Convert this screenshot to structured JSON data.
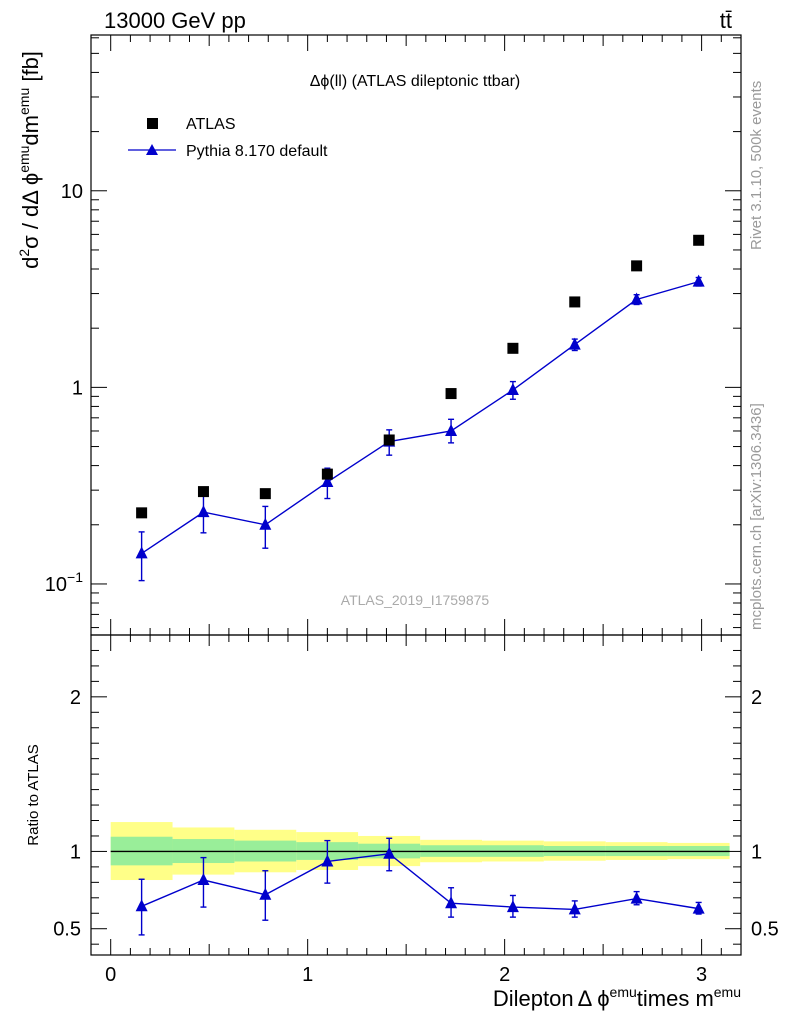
{
  "header": {
    "energy_label": "13000 GeV pp",
    "process_label": "tt̄"
  },
  "side": {
    "rivet_label": "Rivet 3.1.10,  500k events",
    "mcplots_label": "mcplots.cern.ch [arXiv:1306.3436]"
  },
  "chart_data": [
    {
      "type": "scatter",
      "title": "Δϕ(ll) (ATLAS dileptonic ttbar)",
      "ylabel_parts": [
        "d",
        "2",
        "σ / dΔ ϕ",
        "emu",
        "dm",
        "emu",
        " [fb]"
      ],
      "yscale": "log",
      "ylim": [
        0.055,
        62
      ],
      "xlim": [
        -0.1,
        3.2
      ],
      "yticks": [
        {
          "value": 0.1,
          "base": "10",
          "exp": "−1"
        },
        {
          "value": 1,
          "label": "1"
        },
        {
          "value": 10,
          "label": "10"
        }
      ],
      "legend": {
        "placement": "top-left",
        "entries": [
          "ATLAS",
          "Pythia 8.170 default"
        ]
      },
      "watermark": "ATLAS_2019_I1759875",
      "series": [
        {
          "name": "ATLAS",
          "marker": "square",
          "color": "#000000",
          "x": [
            0.157,
            0.471,
            0.785,
            1.1,
            1.414,
            1.728,
            2.042,
            2.356,
            2.67,
            2.985
          ],
          "y": [
            0.23,
            0.295,
            0.288,
            0.362,
            0.54,
            0.93,
            1.58,
            2.72,
            4.15,
            5.6
          ]
        },
        {
          "name": "Pythia 8.170 default",
          "marker": "triangle",
          "line": true,
          "color": "#0000cc",
          "x": [
            0.157,
            0.471,
            0.785,
            1.1,
            1.414,
            1.728,
            2.042,
            2.356,
            2.67,
            2.985
          ],
          "y": [
            0.143,
            0.232,
            0.2,
            0.33,
            0.53,
            0.6,
            0.97,
            1.65,
            2.8,
            3.45
          ],
          "y_low": [
            0.104,
            0.182,
            0.152,
            0.272,
            0.452,
            0.522,
            0.87,
            1.54,
            2.64,
            3.28
          ],
          "y_high": [
            0.184,
            0.282,
            0.248,
            0.388,
            0.608,
            0.688,
            1.07,
            1.76,
            2.96,
            3.62
          ]
        }
      ]
    },
    {
      "type": "scatter",
      "ylabel": "Ratio to ATLAS",
      "xlabel_parts": [
        "Dilepton",
        "Δ ϕ",
        "emu",
        "times m",
        "emu"
      ],
      "xlim": [
        -0.1,
        3.2
      ],
      "ylim": [
        0.33,
        2.4
      ],
      "xticks": [
        0,
        1,
        2,
        3
      ],
      "yticks": [
        0.5,
        1,
        2
      ],
      "reference_line": 1,
      "bands": {
        "edges": [
          0.0,
          0.314,
          0.628,
          0.942,
          1.256,
          1.571,
          1.885,
          2.199,
          2.513,
          2.827,
          3.142
        ],
        "yellow_low": [
          0.815,
          0.85,
          0.865,
          0.88,
          0.905,
          0.93,
          0.935,
          0.94,
          0.945,
          0.95
        ],
        "yellow_high": [
          1.19,
          1.155,
          1.14,
          1.125,
          1.1,
          1.075,
          1.07,
          1.065,
          1.06,
          1.055
        ],
        "green_low": [
          0.91,
          0.925,
          0.935,
          0.945,
          0.955,
          0.965,
          0.965,
          0.97,
          0.97,
          0.97
        ],
        "green_high": [
          1.095,
          1.08,
          1.07,
          1.06,
          1.05,
          1.04,
          1.04,
          1.035,
          1.035,
          1.035
        ],
        "yellow_color": "#ffff88",
        "green_color": "#99ee99"
      },
      "series": [
        {
          "name": "Pythia 8.170 default",
          "marker": "triangle",
          "line": true,
          "color": "#0000cc",
          "x": [
            0.157,
            0.471,
            0.785,
            1.1,
            1.414,
            1.728,
            2.042,
            2.356,
            2.67,
            2.985
          ],
          "y": [
            0.645,
            0.815,
            0.72,
            0.935,
            0.985,
            0.665,
            0.64,
            0.625,
            0.695,
            0.63
          ],
          "y_low": [
            0.46,
            0.64,
            0.555,
            0.795,
            0.875,
            0.575,
            0.575,
            0.575,
            0.655,
            0.595
          ],
          "y_high": [
            0.82,
            0.96,
            0.875,
            1.07,
            1.085,
            0.765,
            0.715,
            0.68,
            0.74,
            0.67
          ]
        }
      ]
    }
  ]
}
